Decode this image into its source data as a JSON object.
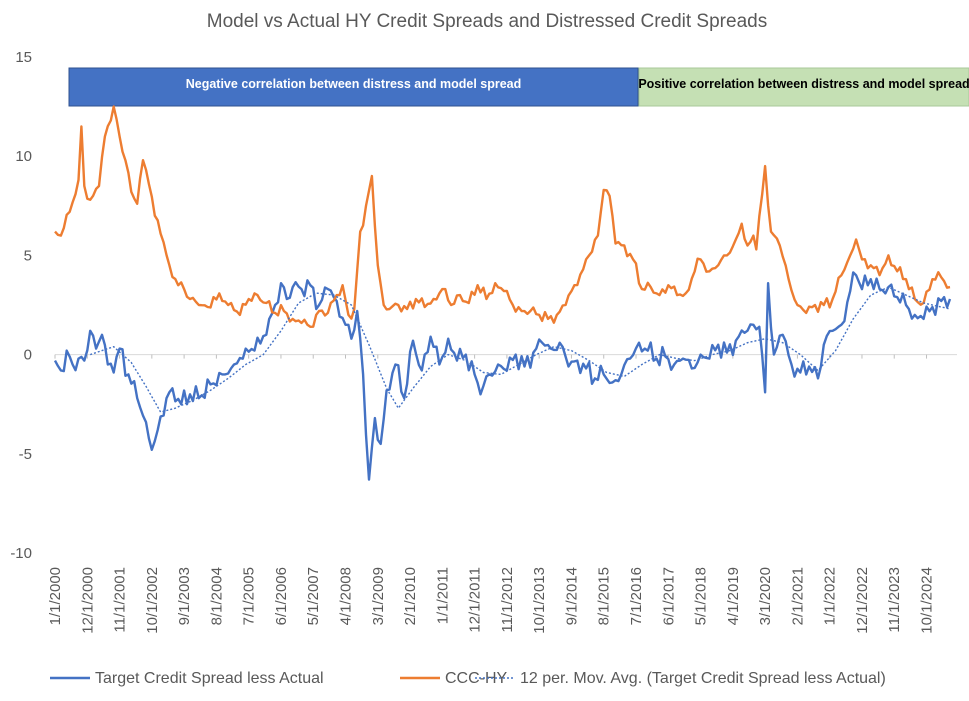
{
  "chart_data": {
    "type": "line",
    "title": "Model vs Actual HY Credit Spreads and Distressed Credit Spreads",
    "xlabel": "",
    "ylabel": "",
    "ylim": [
      -10,
      15
    ],
    "yticks": [
      "15",
      "10",
      "5",
      "0",
      "-5",
      "-10"
    ],
    "ytick_values": [
      15,
      10,
      5,
      0,
      -5,
      -10
    ],
    "x_tick_labels": [
      "1/1/2000",
      "12/1/2000",
      "11/1/2001",
      "10/1/2002",
      "9/1/2003",
      "8/1/2004",
      "7/1/2005",
      "6/1/2006",
      "5/1/2007",
      "4/1/2008",
      "3/1/2009",
      "2/1/2010",
      "1/1/2011",
      "12/1/2011",
      "11/1/2012",
      "10/1/2013",
      "9/1/2014",
      "8/1/2015",
      "7/1/2016",
      "6/1/2017",
      "5/1/2018",
      "4/1/2019",
      "3/1/2020",
      "2/1/2021",
      "1/1/2022",
      "12/1/2022",
      "11/1/2023",
      "10/1/2024"
    ],
    "x_start": "2000-01",
    "x_end": "2025-06",
    "annotations": [
      {
        "text": "Negative correlation between distress and model spread",
        "from": "2000-01",
        "to": "2016-05",
        "color": "#4472C4"
      },
      {
        "text": "Positive  correlation between distress and model spread",
        "from": "2016-05",
        "to": "2025-09",
        "color": "#C5E0B4"
      }
    ],
    "series": [
      {
        "name": "Target Credit Spread less Actual",
        "color": "#4472C4",
        "style": "solid",
        "knots": [
          [
            "2000-01",
            -0.3
          ],
          [
            "2000-03",
            -0.8
          ],
          [
            "2000-05",
            0.2
          ],
          [
            "2000-07",
            -0.5
          ],
          [
            "2000-09",
            -0.2
          ],
          [
            "2000-11",
            -0.3
          ],
          [
            "2001-01",
            1.2
          ],
          [
            "2001-03",
            0.3
          ],
          [
            "2001-05",
            1.0
          ],
          [
            "2001-07",
            -0.5
          ],
          [
            "2001-09",
            -0.9
          ],
          [
            "2001-11",
            0.3
          ],
          [
            "2002-02",
            -1.0
          ],
          [
            "2002-05",
            -2.2
          ],
          [
            "2002-08",
            -3.4
          ],
          [
            "2002-10",
            -4.8
          ],
          [
            "2002-12",
            -3.8
          ],
          [
            "2003-03",
            -2.2
          ],
          [
            "2003-05",
            -1.7
          ],
          [
            "2003-08",
            -2.5
          ],
          [
            "2003-11",
            -2.0
          ],
          [
            "2004-02",
            -2.2
          ],
          [
            "2004-06",
            -1.5
          ],
          [
            "2004-10",
            -1.0
          ],
          [
            "2005-02",
            -0.5
          ],
          [
            "2005-06",
            0.3
          ],
          [
            "2005-09",
            0.2
          ],
          [
            "2006-01",
            1.0
          ],
          [
            "2006-04",
            2.5
          ],
          [
            "2006-06",
            3.6
          ],
          [
            "2006-08",
            2.8
          ],
          [
            "2006-10",
            3.4
          ],
          [
            "2007-01",
            3.3
          ],
          [
            "2007-04",
            3.5
          ],
          [
            "2007-07",
            2.5
          ],
          [
            "2007-10",
            3.3
          ],
          [
            "2008-01",
            2.7
          ],
          [
            "2008-04",
            1.5
          ],
          [
            "2008-06",
            0.8
          ],
          [
            "2008-08",
            2.2
          ],
          [
            "2008-10",
            -1.0
          ],
          [
            "2008-12",
            -6.3
          ],
          [
            "2009-02",
            -3.2
          ],
          [
            "2009-04",
            -4.5
          ],
          [
            "2009-06",
            -1.8
          ],
          [
            "2009-09",
            -0.5
          ],
          [
            "2009-12",
            -2.2
          ],
          [
            "2010-03",
            0.7
          ],
          [
            "2010-06",
            -0.8
          ],
          [
            "2010-09",
            0.9
          ],
          [
            "2010-12",
            -0.5
          ],
          [
            "2011-03",
            0.8
          ],
          [
            "2011-06",
            -0.3
          ],
          [
            "2011-09",
            0.0
          ],
          [
            "2011-12",
            -1.0
          ],
          [
            "2012-02",
            -2.0
          ],
          [
            "2012-05",
            -1.0
          ],
          [
            "2012-08",
            -0.5
          ],
          [
            "2012-11",
            -0.8
          ],
          [
            "2013-02",
            0.0
          ],
          [
            "2013-05",
            -0.6
          ],
          [
            "2013-08",
            0.1
          ],
          [
            "2013-11",
            0.6
          ],
          [
            "2014-02",
            0.3
          ],
          [
            "2014-05",
            0.6
          ],
          [
            "2014-08",
            -0.6
          ],
          [
            "2014-11",
            -0.3
          ],
          [
            "2015-02",
            -0.7
          ],
          [
            "2015-05",
            -1.2
          ],
          [
            "2015-08",
            -1.0
          ],
          [
            "2015-11",
            -1.4
          ],
          [
            "2016-02",
            -1.0
          ],
          [
            "2016-05",
            -0.2
          ],
          [
            "2016-08",
            0.6
          ],
          [
            "2016-11",
            0.2
          ],
          [
            "2017-02",
            -0.2
          ],
          [
            "2017-05",
            -0.1
          ],
          [
            "2017-08",
            -0.5
          ],
          [
            "2017-11",
            -0.2
          ],
          [
            "2018-02",
            -0.7
          ],
          [
            "2018-05",
            0.0
          ],
          [
            "2018-08",
            -0.2
          ],
          [
            "2018-11",
            0.5
          ],
          [
            "2019-02",
            0.1
          ],
          [
            "2019-05",
            0.7
          ],
          [
            "2019-08",
            1.1
          ],
          [
            "2019-11",
            1.5
          ],
          [
            "2020-01",
            1.4
          ],
          [
            "2020-03",
            -1.9
          ],
          [
            "2020-04",
            3.6
          ],
          [
            "2020-06",
            0.0
          ],
          [
            "2020-09",
            1.0
          ],
          [
            "2020-12",
            -0.5
          ],
          [
            "2021-03",
            -0.9
          ],
          [
            "2021-06",
            -0.6
          ],
          [
            "2021-09",
            -1.2
          ],
          [
            "2021-11",
            0.5
          ],
          [
            "2022-02",
            1.2
          ],
          [
            "2022-05",
            1.5
          ],
          [
            "2022-08",
            3.2
          ],
          [
            "2022-10",
            4.0
          ],
          [
            "2022-12",
            3.3
          ],
          [
            "2023-03",
            3.8
          ],
          [
            "2023-06",
            3.3
          ],
          [
            "2023-09",
            3.4
          ],
          [
            "2023-12",
            2.9
          ],
          [
            "2024-03",
            2.5
          ],
          [
            "2024-06",
            2.0
          ],
          [
            "2024-09",
            1.8
          ],
          [
            "2024-12",
            2.4
          ],
          [
            "2025-03",
            2.7
          ],
          [
            "2025-06",
            2.8
          ]
        ]
      },
      {
        "name": "CCC-HY",
        "color": "#ED7D31",
        "style": "solid",
        "knots": [
          [
            "2000-01",
            6.2
          ],
          [
            "2000-03",
            6.0
          ],
          [
            "2000-06",
            7.2
          ],
          [
            "2000-09",
            8.8
          ],
          [
            "2000-10",
            11.5
          ],
          [
            "2000-11",
            8.5
          ],
          [
            "2001-01",
            7.8
          ],
          [
            "2001-04",
            8.5
          ],
          [
            "2001-06",
            11.0
          ],
          [
            "2001-08",
            11.8
          ],
          [
            "2001-09",
            12.5
          ],
          [
            "2001-11",
            11.0
          ],
          [
            "2002-01",
            9.8
          ],
          [
            "2002-03",
            8.2
          ],
          [
            "2002-05",
            7.6
          ],
          [
            "2002-07",
            9.8
          ],
          [
            "2002-09",
            8.6
          ],
          [
            "2002-11",
            7.0
          ],
          [
            "2003-01",
            6.1
          ],
          [
            "2003-04",
            4.5
          ],
          [
            "2003-07",
            3.5
          ],
          [
            "2003-09",
            3.3
          ],
          [
            "2003-11",
            2.8
          ],
          [
            "2004-02",
            2.5
          ],
          [
            "2004-05",
            2.4
          ],
          [
            "2004-07",
            2.9
          ],
          [
            "2004-10",
            2.7
          ],
          [
            "2005-01",
            2.6
          ],
          [
            "2005-04",
            2.0
          ],
          [
            "2005-07",
            2.8
          ],
          [
            "2005-10",
            3.0
          ],
          [
            "2006-01",
            2.6
          ],
          [
            "2006-04",
            2.1
          ],
          [
            "2006-07",
            2.2
          ],
          [
            "2006-10",
            1.8
          ],
          [
            "2007-01",
            1.6
          ],
          [
            "2007-04",
            1.4
          ],
          [
            "2007-07",
            2.2
          ],
          [
            "2007-10",
            2.1
          ],
          [
            "2008-01",
            3.0
          ],
          [
            "2008-03",
            3.5
          ],
          [
            "2008-05",
            2.0
          ],
          [
            "2008-07",
            2.3
          ],
          [
            "2008-09",
            6.2
          ],
          [
            "2008-11",
            7.5
          ],
          [
            "2009-01",
            9.0
          ],
          [
            "2009-03",
            4.5
          ],
          [
            "2009-05",
            2.5
          ],
          [
            "2009-07",
            2.3
          ],
          [
            "2009-10",
            2.5
          ],
          [
            "2010-01",
            2.3
          ],
          [
            "2010-04",
            2.8
          ],
          [
            "2010-07",
            2.4
          ],
          [
            "2010-10",
            2.8
          ],
          [
            "2011-01",
            3.3
          ],
          [
            "2011-04",
            2.5
          ],
          [
            "2011-07",
            3.0
          ],
          [
            "2011-10",
            2.6
          ],
          [
            "2012-01",
            3.5
          ],
          [
            "2012-04",
            2.8
          ],
          [
            "2012-07",
            3.6
          ],
          [
            "2012-10",
            3.2
          ],
          [
            "2013-01",
            2.5
          ],
          [
            "2013-04",
            2.2
          ],
          [
            "2013-07",
            2.2
          ],
          [
            "2013-10",
            2.0
          ],
          [
            "2014-01",
            1.8
          ],
          [
            "2014-04",
            2.0
          ],
          [
            "2014-07",
            2.5
          ],
          [
            "2014-10",
            3.5
          ],
          [
            "2015-01",
            4.3
          ],
          [
            "2015-03",
            5.0
          ],
          [
            "2015-06",
            6.0
          ],
          [
            "2015-08",
            8.3
          ],
          [
            "2015-10",
            8.0
          ],
          [
            "2015-12",
            5.6
          ],
          [
            "2016-03",
            5.5
          ],
          [
            "2016-06",
            4.8
          ],
          [
            "2016-09",
            3.3
          ],
          [
            "2016-12",
            3.4
          ],
          [
            "2017-03",
            3.0
          ],
          [
            "2017-06",
            3.5
          ],
          [
            "2017-09",
            3.0
          ],
          [
            "2017-12",
            3.1
          ],
          [
            "2018-03",
            4.2
          ],
          [
            "2018-05",
            4.8
          ],
          [
            "2018-08",
            4.2
          ],
          [
            "2018-11",
            4.5
          ],
          [
            "2019-02",
            5.0
          ],
          [
            "2019-05",
            5.8
          ],
          [
            "2019-07",
            6.6
          ],
          [
            "2019-09",
            5.5
          ],
          [
            "2019-11",
            6.0
          ],
          [
            "2019-12",
            5.3
          ],
          [
            "2020-03",
            9.5
          ],
          [
            "2020-05",
            6.2
          ],
          [
            "2020-08",
            5.5
          ],
          [
            "2020-11",
            3.8
          ],
          [
            "2021-02",
            2.5
          ],
          [
            "2021-05",
            2.1
          ],
          [
            "2021-08",
            2.5
          ],
          [
            "2021-11",
            2.5
          ],
          [
            "2022-02",
            2.8
          ],
          [
            "2022-05",
            4.0
          ],
          [
            "2022-08",
            5.0
          ],
          [
            "2022-10",
            5.8
          ],
          [
            "2022-12",
            4.8
          ],
          [
            "2023-03",
            4.5
          ],
          [
            "2023-06",
            4.0
          ],
          [
            "2023-09",
            5.0
          ],
          [
            "2023-12",
            4.2
          ],
          [
            "2024-03",
            3.8
          ],
          [
            "2024-06",
            2.8
          ],
          [
            "2024-09",
            2.6
          ],
          [
            "2024-12",
            3.8
          ],
          [
            "2025-03",
            3.9
          ],
          [
            "2025-06",
            3.4
          ]
        ]
      },
      {
        "name": "12 per. Mov. Avg. (Target Credit Spread less Actual)",
        "color": "#4472C4",
        "style": "dotted",
        "knots": [
          [
            "2001-01",
            0.0
          ],
          [
            "2001-09",
            0.4
          ],
          [
            "2002-03",
            -0.4
          ],
          [
            "2002-08",
            -1.6
          ],
          [
            "2003-01",
            -2.9
          ],
          [
            "2003-06",
            -2.7
          ],
          [
            "2003-12",
            -2.3
          ],
          [
            "2004-06",
            -1.8
          ],
          [
            "2004-12",
            -1.2
          ],
          [
            "2005-06",
            -0.5
          ],
          [
            "2005-12",
            0.0
          ],
          [
            "2006-06",
            1.2
          ],
          [
            "2006-12",
            2.6
          ],
          [
            "2007-06",
            3.1
          ],
          [
            "2007-12",
            3.0
          ],
          [
            "2008-06",
            2.5
          ],
          [
            "2008-12",
            0.5
          ],
          [
            "2009-06",
            -1.7
          ],
          [
            "2009-10",
            -2.7
          ],
          [
            "2010-03",
            -1.7
          ],
          [
            "2010-09",
            -0.6
          ],
          [
            "2011-03",
            0.0
          ],
          [
            "2011-09",
            -0.3
          ],
          [
            "2012-03",
            -0.9
          ],
          [
            "2012-09",
            -1.0
          ],
          [
            "2013-03",
            -0.5
          ],
          [
            "2013-09",
            0.0
          ],
          [
            "2014-03",
            0.4
          ],
          [
            "2014-09",
            0.2
          ],
          [
            "2015-03",
            -0.3
          ],
          [
            "2015-09",
            -0.9
          ],
          [
            "2016-03",
            -1.1
          ],
          [
            "2016-09",
            -0.5
          ],
          [
            "2017-03",
            0.0
          ],
          [
            "2017-09",
            -0.2
          ],
          [
            "2018-03",
            -0.3
          ],
          [
            "2018-09",
            0.0
          ],
          [
            "2019-03",
            0.2
          ],
          [
            "2019-09",
            0.6
          ],
          [
            "2020-03",
            0.8
          ],
          [
            "2020-09",
            0.6
          ],
          [
            "2021-03",
            0.0
          ],
          [
            "2021-09",
            -0.8
          ],
          [
            "2022-03",
            0.2
          ],
          [
            "2022-09",
            1.8
          ],
          [
            "2023-03",
            3.0
          ],
          [
            "2023-09",
            3.4
          ],
          [
            "2024-03",
            3.0
          ],
          [
            "2024-09",
            2.6
          ],
          [
            "2025-06",
            2.3
          ]
        ]
      }
    ],
    "legend_position": "bottom",
    "grid": false
  }
}
